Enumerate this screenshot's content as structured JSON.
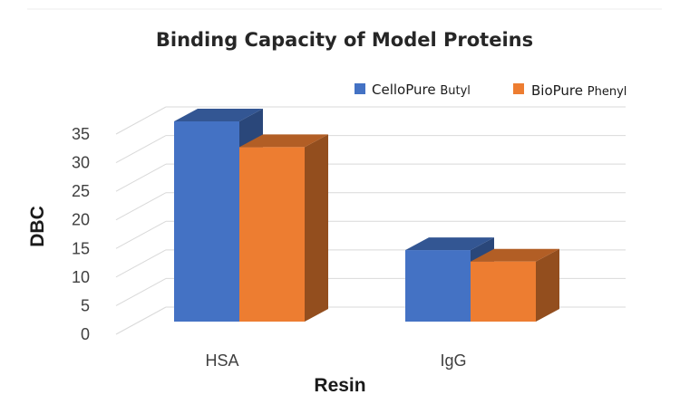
{
  "chart_data": {
    "type": "bar",
    "title": "Binding Capacity of Model Proteins",
    "xlabel": "Resin",
    "ylabel": "DBC",
    "categories": [
      "HSA",
      "IgG"
    ],
    "series": [
      {
        "name_main": "CelloPure",
        "name_sub": "Butyl",
        "values": [
          35,
          12.5
        ],
        "color": "#4472C4"
      },
      {
        "name_main": "BioPure",
        "name_sub": "Phenyl",
        "values": [
          30.5,
          10.5
        ],
        "color": "#ED7D31"
      }
    ],
    "ylim": [
      0,
      35
    ],
    "yticks": [
      0,
      5,
      10,
      15,
      20,
      25,
      30,
      35
    ],
    "grid": true,
    "legend_position": "top-right",
    "three_d": true
  }
}
